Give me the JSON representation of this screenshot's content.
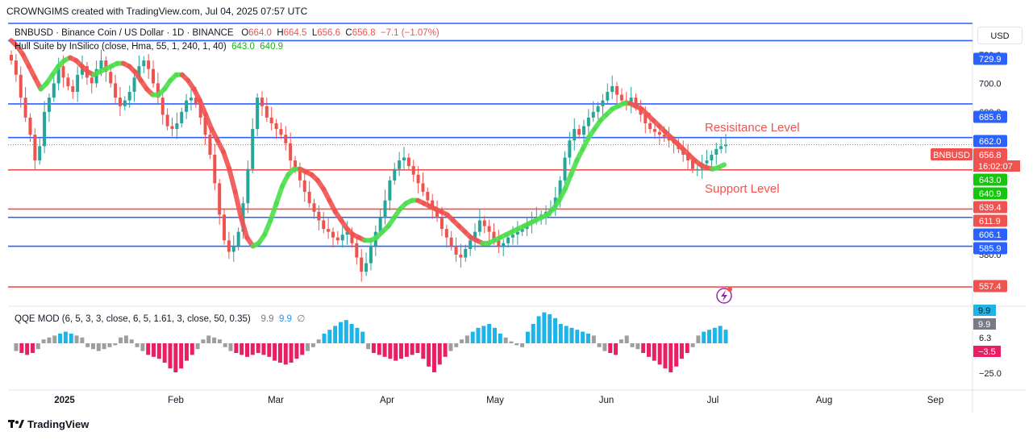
{
  "header": {
    "created_by": "CROWNGIMS created with TradingView.com, Jul 04, 2025 07:57 UTC"
  },
  "legend": {
    "symbol_line": "BNBUSD · Binance Coin / US Dollar · 1D · BINANCE",
    "o_label": "O",
    "o_val": "664.0",
    "h_label": "H",
    "h_val": "664.5",
    "l_label": "L",
    "l_val": "656.6",
    "c_label": "C",
    "c_val": "656.8",
    "change": "−7.1 (−1.07%)",
    "indicator_name": "Hull Suite by InSilico (close, Hma, 55, 1, 240, 1, 40)",
    "ind_val1": "643.0",
    "ind_val2": "640.9",
    "qqe_name": "QQE MOD (6, 5, 3, 3, close, 6, 5, 1.61, 3, close, 50, 0.35)",
    "qqe_val1": "9.9",
    "qqe_val2": "9.9",
    "qqe_null": "∅"
  },
  "currency_button": "USD",
  "footer": {
    "brand": "TradingView"
  },
  "colors": {
    "up": "#26a69a",
    "down": "#ef5350",
    "hull_up": "#4cde4c",
    "hull_down": "#ef5350",
    "blue_line": "#2962ff",
    "red_line": "#ef5350",
    "qqe_pos": "#1fb4e8",
    "qqe_neg": "#e91e63",
    "qqe_neutral": "#9e9e9e"
  },
  "chart_data": {
    "type": "candlestick",
    "symbol": "BNBUSD",
    "interval": "1D",
    "ylim": [
      545,
      742
    ],
    "x_ticks": [
      "2025",
      "Feb",
      "Mar",
      "Apr",
      "May",
      "Jun",
      "Jul",
      "Aug",
      "Sep"
    ],
    "y_ticks": [
      "720.0",
      "700.0",
      "680.0",
      "580.0"
    ],
    "price_badges": [
      {
        "label": "729.9",
        "color": "#2962ff",
        "value": 729.9
      },
      {
        "label": "685.6",
        "color": "#2962ff",
        "value": 685.6
      },
      {
        "label": "662.0",
        "color": "#2962ff",
        "value": 662.0
      },
      {
        "label": "BNBUSD",
        "color": "#ef5350",
        "value": 656.8
      },
      {
        "label": "656.8",
        "color": "#ef5350",
        "value": 656.8
      },
      {
        "label": "16:02:07",
        "color": "#ef5350",
        "value": 656.8
      },
      {
        "label": "643.0",
        "color": "#16c60c",
        "value": 643.0
      },
      {
        "label": "640.9",
        "color": "#16c60c",
        "value": 640.9
      },
      {
        "label": "639.4",
        "color": "#ef5350",
        "value": 639.4
      },
      {
        "label": "611.9",
        "color": "#ef5350",
        "value": 611.9
      },
      {
        "label": "606.1",
        "color": "#2962ff",
        "value": 606.1
      },
      {
        "label": "585.9",
        "color": "#2962ff",
        "value": 585.9
      },
      {
        "label": "557.4",
        "color": "#ef5350",
        "value": 557.4
      }
    ],
    "horizontal_lines": [
      {
        "value": 742.0,
        "color": "#2962ff"
      },
      {
        "value": 729.9,
        "color": "#2962ff"
      },
      {
        "value": 685.6,
        "color": "#2962ff"
      },
      {
        "value": 662.0,
        "color": "#2962ff"
      },
      {
        "value": 639.4,
        "color": "#ef5350"
      },
      {
        "value": 611.9,
        "color": "#ef5350"
      },
      {
        "value": 606.1,
        "color": "#2962ff"
      },
      {
        "value": 585.9,
        "color": "#2962ff"
      },
      {
        "value": 557.4,
        "color": "#ef5350"
      }
    ],
    "annotations": [
      "Resisitance Level",
      "Support Level"
    ],
    "closes": [
      716,
      706,
      690,
      676,
      664,
      646,
      656,
      680,
      690,
      700,
      712,
      704,
      698,
      694,
      706,
      712,
      704,
      700,
      710,
      716,
      708,
      700,
      690,
      684,
      688,
      694,
      704,
      712,
      716,
      710,
      700,
      690,
      678,
      670,
      668,
      672,
      680,
      688,
      690,
      686,
      676,
      664,
      650,
      630,
      608,
      590,
      582,
      586,
      596,
      616,
      640,
      668,
      690,
      684,
      676,
      672,
      668,
      664,
      658,
      646,
      640,
      632,
      624,
      616,
      610,
      604,
      598,
      596,
      592,
      590,
      594,
      596,
      588,
      578,
      568,
      574,
      586,
      596,
      606,
      618,
      632,
      640,
      646,
      648,
      642,
      636,
      630,
      624,
      618,
      612,
      606,
      598,
      592,
      586,
      580,
      578,
      584,
      590,
      596,
      604,
      600,
      596,
      590,
      586,
      588,
      592,
      594,
      596,
      598,
      602,
      604,
      606,
      608,
      610,
      612,
      620,
      632,
      648,
      660,
      668,
      664,
      670,
      676,
      680,
      684,
      688,
      694,
      698,
      692,
      688,
      686,
      690,
      684,
      678,
      672,
      668,
      666,
      664,
      662,
      660,
      658,
      654,
      650,
      646,
      640,
      640,
      644,
      646,
      650,
      654,
      656,
      657
    ],
    "hull": [
      730,
      726,
      720,
      712,
      704,
      696,
      700,
      706,
      712,
      716,
      718,
      716,
      712,
      708,
      706,
      708,
      710,
      712,
      714,
      714,
      712,
      708,
      702,
      696,
      692,
      692,
      696,
      702,
      706,
      706,
      702,
      696,
      688,
      678,
      668,
      660,
      652,
      640,
      624,
      606,
      592,
      586,
      588,
      594,
      604,
      616,
      628,
      636,
      640,
      640,
      638,
      636,
      632,
      626,
      618,
      610,
      604,
      598,
      594,
      592,
      590,
      590,
      592,
      596,
      600,
      606,
      612,
      616,
      618,
      618,
      616,
      614,
      612,
      610,
      608,
      604,
      600,
      596,
      592,
      590,
      588,
      588,
      590,
      592,
      594,
      596,
      598,
      600,
      602,
      604,
      606,
      608,
      612,
      618,
      626,
      636,
      646,
      654,
      662,
      668,
      674,
      678,
      682,
      684,
      686,
      686,
      684,
      682,
      678,
      674,
      670,
      666,
      662,
      658,
      654,
      650,
      646,
      643,
      641,
      640,
      641,
      643
    ],
    "qqe": [
      -8,
      -10,
      -12,
      -10,
      -6,
      4,
      6,
      8,
      10,
      12,
      10,
      8,
      6,
      -4,
      -6,
      -8,
      -6,
      -4,
      -2,
      6,
      8,
      4,
      -4,
      -8,
      -12,
      -14,
      -16,
      -20,
      -26,
      -30,
      -26,
      -18,
      -12,
      -6,
      4,
      8,
      6,
      4,
      -4,
      -8,
      -10,
      -12,
      -14,
      -12,
      -10,
      -12,
      -14,
      -18,
      -20,
      -22,
      -20,
      -16,
      -12,
      -8,
      -4,
      4,
      10,
      14,
      18,
      22,
      24,
      20,
      16,
      12,
      -6,
      -10,
      -12,
      -14,
      -16,
      -18,
      -16,
      -14,
      -12,
      -10,
      -16,
      -24,
      -30,
      -22,
      -14,
      -8,
      -4,
      4,
      8,
      12,
      16,
      18,
      20,
      16,
      10,
      6,
      2,
      -2,
      -4,
      12,
      20,
      28,
      32,
      30,
      26,
      20,
      18,
      16,
      14,
      12,
      10,
      8,
      -4,
      -8,
      -10,
      -12,
      4,
      8,
      -4,
      -6,
      -10,
      -14,
      -18,
      -22,
      -26,
      -30,
      -24,
      -16,
      -10,
      -4,
      8,
      12,
      14,
      16,
      18,
      14
    ]
  }
}
